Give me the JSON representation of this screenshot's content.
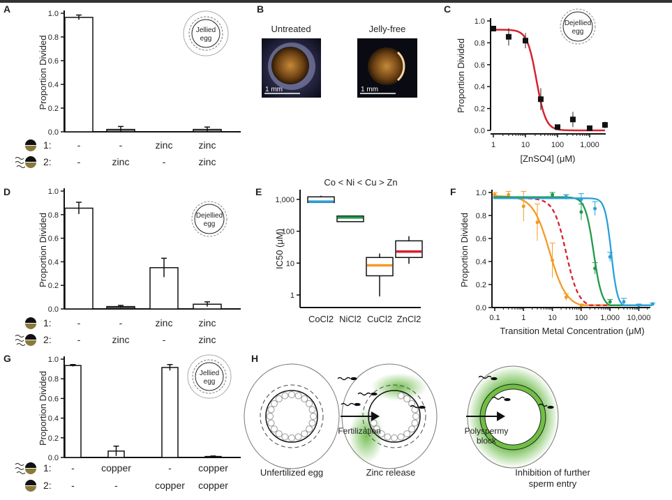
{
  "panel_labels": [
    "A",
    "B",
    "C",
    "D",
    "E",
    "F",
    "G",
    "H"
  ],
  "row_labels": {
    "row1": "1:",
    "row2": "2:"
  },
  "egg_badges": {
    "jellied": [
      "Jellied",
      "egg"
    ],
    "dejellied": [
      "Dejellied",
      "egg"
    ]
  },
  "panel_b": {
    "untreated": "Untreated",
    "jelly_free": "Jelly-free",
    "scale_bar": "1 mm"
  },
  "panel_h": {
    "stage1": "Unfertilized egg",
    "arrow1": "Fertilization",
    "stage2": "Zinc release",
    "arrow2": [
      "Polyspermy",
      "block"
    ],
    "stage3": [
      "Inhibition of further",
      "sperm entry"
    ],
    "zinc_color": "#5fb53a"
  },
  "chart_data": [
    {
      "panel": "A",
      "type": "bar",
      "ylabel": "Proportion Divided",
      "ylim": [
        0,
        1
      ],
      "yticks": [
        "0.0",
        "0.2",
        "0.4",
        "0.6",
        "0.8",
        "1.0"
      ],
      "row1": [
        "-",
        "-",
        "zinc",
        "zinc"
      ],
      "row2": [
        "-",
        "zinc",
        "-",
        "zinc"
      ],
      "values": [
        0.965,
        0.02,
        0,
        0.02
      ],
      "errors": [
        0.02,
        0.025,
        0,
        0.02
      ],
      "fills": [
        "#ffffff",
        "#888888",
        "#888888",
        "#888888"
      ]
    },
    {
      "panel": "C",
      "type": "scatter",
      "xlabel": "[ZnSO4] (μM)",
      "ylabel": "Proportion Divided",
      "xscale": "log",
      "xlim": [
        0.9,
        3000
      ],
      "ylim": [
        0,
        1
      ],
      "xticks": [
        "1",
        "10",
        "100",
        "1,000"
      ],
      "yticks": [
        "0.0",
        "0.2",
        "0.4",
        "0.6",
        "0.8",
        "1.0"
      ],
      "x": [
        1,
        3,
        10,
        30,
        100,
        300,
        1000,
        3000
      ],
      "y": [
        0.93,
        0.855,
        0.82,
        0.285,
        0.03,
        0.1,
        0.02,
        0.05
      ],
      "errors": [
        0.02,
        0.08,
        0.07,
        0.1,
        0.02,
        0.07,
        0.01,
        0.03
      ],
      "fit": {
        "top": 0.92,
        "ic50": 22,
        "hill": 3,
        "color": "#d8202f"
      }
    },
    {
      "panel": "D",
      "type": "bar",
      "ylabel": "Proportion Divided",
      "ylim": [
        0,
        1
      ],
      "yticks": [
        "0.0",
        "0.2",
        "0.4",
        "0.6",
        "0.8",
        "1.0"
      ],
      "row1": [
        "-",
        "-",
        "zinc",
        "zinc"
      ],
      "row2": [
        "-",
        "zinc",
        "-",
        "zinc"
      ],
      "values": [
        0.855,
        0.02,
        0.35,
        0.04
      ],
      "errors": [
        0.05,
        0.01,
        0.08,
        0.02
      ],
      "fills": [
        "#ffffff",
        "#555555",
        "#ffffff",
        "#ffffff"
      ]
    },
    {
      "panel": "E",
      "type": "box",
      "title": "Co < Ni < Cu > Zn",
      "ylabel": "IC50 (μM)",
      "yscale": "log",
      "yticks": [
        "1",
        "10",
        "100",
        "1,000"
      ],
      "categories": [
        "CoCl2",
        "NiCl2",
        "CuCl2",
        "ZnCl2"
      ],
      "boxes": [
        {
          "min": 800,
          "q1": 800,
          "median": 850,
          "q3": 1200,
          "max": 1300,
          "color": "#2a9fd8"
        },
        {
          "min": 200,
          "q1": 200,
          "median": 270,
          "q3": 300,
          "max": 300,
          "color": "#1e9a4a"
        },
        {
          "min": 0.9,
          "q1": 4,
          "median": 8.5,
          "q3": 15,
          "max": 20,
          "color": "#f39a25"
        },
        {
          "min": 9.5,
          "q1": 15,
          "median": 23,
          "q3": 50,
          "max": 70,
          "color": "#d8202f"
        }
      ]
    },
    {
      "panel": "F",
      "type": "line",
      "xlabel": "Transition Metal Concentration (μM)",
      "ylabel": "Proportion Divided",
      "xscale": "log",
      "xlim": [
        0.08,
        30000
      ],
      "ylim": [
        0,
        1
      ],
      "xticks": [
        "0.1",
        "1",
        "10",
        "100",
        "1,000",
        "10,000"
      ],
      "yticks": [
        "0.0",
        "0.2",
        "0.4",
        "0.6",
        "0.8",
        "1.0"
      ],
      "series": [
        {
          "color": "#f39a25",
          "top": 0.97,
          "ic50": 8,
          "hill": 1.5,
          "dashed": false,
          "x": [
            0.1,
            0.3,
            1,
            3,
            10,
            30,
            100
          ],
          "y": [
            0.98,
            0.98,
            0.88,
            0.74,
            0.41,
            0.09,
            0.02
          ],
          "errors": [
            0.02,
            0.03,
            0.13,
            0.16,
            0.15,
            0.03,
            0.01
          ]
        },
        {
          "color": "#d8202f",
          "top": 0.95,
          "ic50": 30,
          "hill": 2,
          "dashed": true,
          "x": [],
          "y": [],
          "errors": []
        },
        {
          "color": "#1e9a4a",
          "top": 0.96,
          "ic50": 270,
          "hill": 3,
          "dashed": false,
          "x": [
            10,
            30,
            100,
            300,
            1000
          ],
          "y": [
            0.98,
            0.96,
            0.83,
            0.34,
            0.05
          ],
          "errors": [
            0.02,
            0.02,
            0.07,
            0.05,
            0.02
          ]
        },
        {
          "color": "#2a9fd8",
          "top": 0.95,
          "ic50": 1100,
          "hill": 4,
          "dashed": false,
          "x": [
            30,
            100,
            300,
            1000,
            3000,
            10000,
            30000
          ],
          "y": [
            0.96,
            0.94,
            0.86,
            0.44,
            0.05,
            0.02,
            0.03
          ],
          "errors": [
            0.02,
            0.05,
            0.06,
            0.04,
            0.03,
            0.01,
            0.01
          ]
        }
      ]
    },
    {
      "panel": "G",
      "type": "bar",
      "ylabel": "Proportion Divided",
      "ylim": [
        0,
        1
      ],
      "yticks": [
        "0.0",
        "0.2",
        "0.4",
        "0.6",
        "0.8",
        "1.0"
      ],
      "row1": [
        "-",
        "copper",
        "-",
        "copper"
      ],
      "row2": [
        "-",
        "-",
        "copper",
        "copper"
      ],
      "values": [
        0.935,
        0.065,
        0.915,
        0.01
      ],
      "errors": [
        0.01,
        0.05,
        0.03,
        0.005
      ],
      "fills": [
        "#ffffff",
        "#ffffff",
        "#ffffff",
        "#333333"
      ]
    }
  ]
}
